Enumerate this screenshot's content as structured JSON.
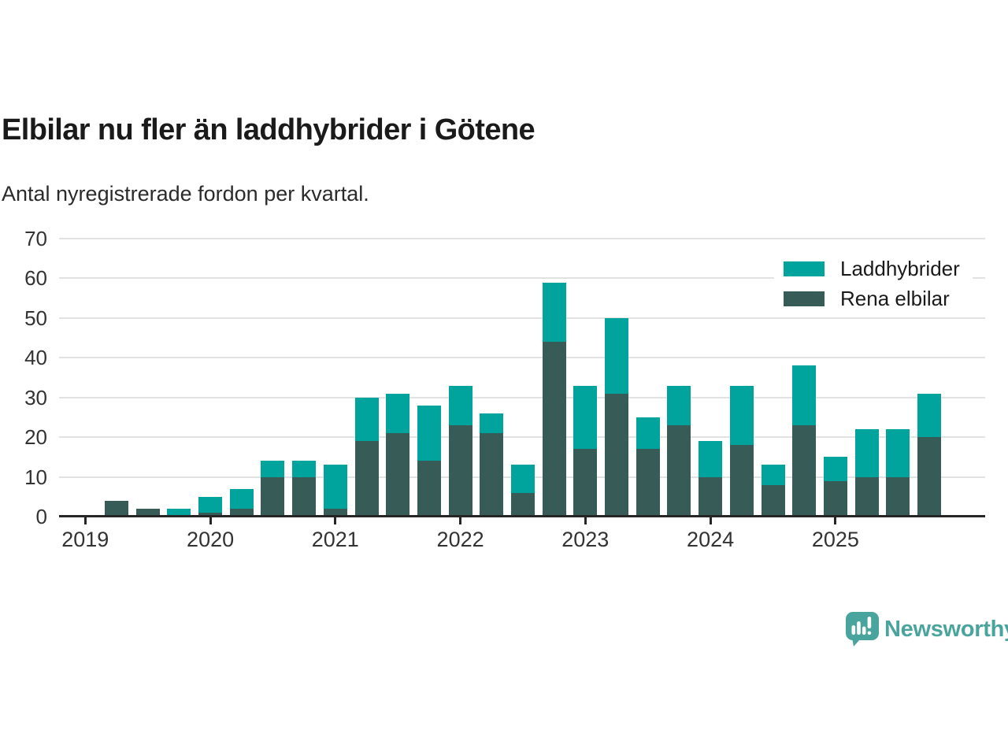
{
  "page": {
    "title": "Elbilar nu fler än laddhybrider i Götene",
    "subtitle": "Antal nyregistrerade fordon per kvartal.",
    "background": "#ffffff"
  },
  "branding": {
    "wordmark": "Newsworthy",
    "logo_icon": "bar-chart-speech-bubble-icon",
    "brand_color": "#4aa49e"
  },
  "chart_data": {
    "type": "bar",
    "stacked": true,
    "title": "Elbilar nu fler än laddhybrider i Götene",
    "subtitle": "Antal nyregistrerade fordon per kvartal.",
    "categories": [
      "2019 Q1",
      "2019 Q2",
      "2019 Q3",
      "2019 Q4",
      "2020 Q1",
      "2020 Q2",
      "2020 Q3",
      "2020 Q4",
      "2021 Q1",
      "2021 Q2",
      "2021 Q3",
      "2021 Q4",
      "2022 Q1",
      "2022 Q2",
      "2022 Q3",
      "2022 Q4",
      "2023 Q1",
      "2023 Q2",
      "2023 Q3",
      "2023 Q4",
      "2024 Q1",
      "2024 Q2",
      "2024 Q3",
      "2024 Q4",
      "2025 Q1",
      "2025 Q2",
      "2025 Q3",
      "2025 Q4"
    ],
    "x_tick_labels": [
      "2019",
      "2020",
      "2021",
      "2022",
      "2023",
      "2024",
      "2025"
    ],
    "series": [
      {
        "name": "Laddhybrider",
        "color": "#00a49c",
        "stack_position": "top",
        "values": [
          0,
          0,
          0,
          2,
          4,
          5,
          4,
          4,
          11,
          11,
          10,
          14,
          10,
          5,
          7,
          15,
          16,
          19,
          8,
          10,
          9,
          15,
          5,
          15,
          6,
          12,
          12,
          11
        ]
      },
      {
        "name": "Rena elbilar",
        "color": "#375b57",
        "stack_position": "bottom",
        "values": [
          0,
          4,
          2,
          0,
          1,
          2,
          10,
          10,
          2,
          19,
          21,
          14,
          23,
          21,
          6,
          44,
          17,
          31,
          17,
          23,
          10,
          18,
          8,
          23,
          9,
          10,
          10,
          20
        ]
      }
    ],
    "totals": [
      0,
      4,
      2,
      2,
      5,
      7,
      14,
      14,
      13,
      30,
      31,
      28,
      33,
      26,
      13,
      59,
      33,
      50,
      25,
      33,
      19,
      33,
      13,
      38,
      15,
      22,
      22,
      31
    ],
    "ylim": [
      0,
      70
    ],
    "y_ticks": [
      0,
      10,
      20,
      30,
      40,
      50,
      60,
      70
    ],
    "grid": "horizontal",
    "grid_color": "#e2e2e2",
    "axis_color": "#262626",
    "label_color": "#333333",
    "legend_position": "top-right"
  }
}
